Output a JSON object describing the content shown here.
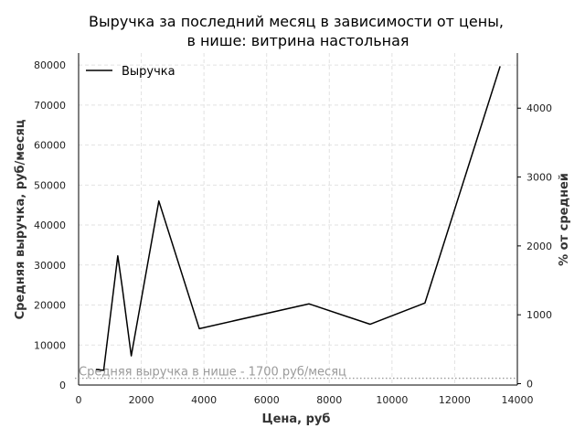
{
  "chart_data": {
    "type": "line",
    "title_line1": "Выручка за последний месяц в зависимости от цены,",
    "title_line2": "в нише: витрина настольная",
    "xlabel": "Цена, руб",
    "ylabel": "Средняя выручка, руб/месяц",
    "y2label": "% от средней",
    "xlim": [
      0,
      14000
    ],
    "ylim": [
      0,
      83000
    ],
    "y2lim": [
      -20,
      4800
    ],
    "x_ticks": [
      0,
      2000,
      4000,
      6000,
      8000,
      10000,
      12000,
      14000
    ],
    "y_ticks": [
      0,
      10000,
      20000,
      30000,
      40000,
      50000,
      60000,
      70000,
      80000
    ],
    "y2_ticks": [
      0,
      1000,
      2000,
      3000,
      4000
    ],
    "grid": true,
    "legend_position": "top-left",
    "series": [
      {
        "name": "Выручка",
        "color": "#000000",
        "x": [
          550,
          800,
          1250,
          1400,
          1680,
          2560,
          3850,
          7350,
          9300,
          11050,
          13450
        ],
        "y": [
          3900,
          3700,
          32300,
          24000,
          7300,
          46000,
          14100,
          20300,
          15200,
          20500,
          79700
        ]
      }
    ],
    "reference_line": {
      "y": 1700,
      "label": "Средняя выручка в нише - 1700 руб/месяц",
      "color": "#9a9a9a"
    }
  }
}
